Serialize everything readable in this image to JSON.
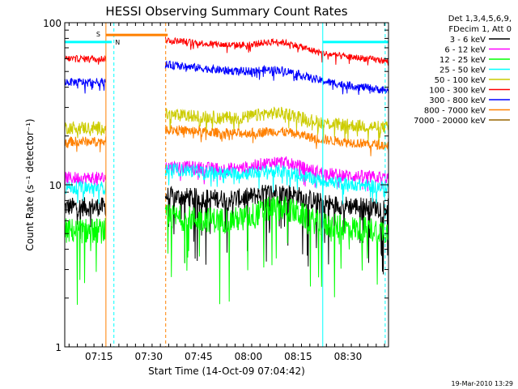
{
  "chart_data": {
    "type": "line",
    "title": "HESSI Observing Summary Count Rates",
    "xlabel": "Start Time (14-Oct-09 07:04:42)",
    "ylabel": "Count Rate (s⁻¹ detector⁻¹)",
    "yscale": "log",
    "ylim": [
      1,
      100
    ],
    "y_ticks": [
      "1",
      "10",
      "100"
    ],
    "x_range_min": [
      0,
      97.5
    ],
    "x_ticks": [
      {
        "m": 10.3,
        "label": "07:15"
      },
      {
        "m": 25.3,
        "label": "07:30"
      },
      {
        "m": 40.3,
        "label": "07:45"
      },
      {
        "m": 55.3,
        "label": "08:00"
      },
      {
        "m": 70.3,
        "label": "08:15"
      },
      {
        "m": 85.3,
        "label": "08:30"
      }
    ],
    "legend_header": [
      "Det 1,3,4,5,6,9,",
      "FDecim 1, Att 0"
    ],
    "series": [
      {
        "name": "3 - 6 keV",
        "color": "#000000",
        "pre": 7.3,
        "post": 8.5,
        "bump": 0.15,
        "end": 7.2,
        "noise": 0.06,
        "spike": 0.4
      },
      {
        "name": "6 - 12 keV",
        "color": "#ff00ff",
        "pre": 11.0,
        "post": 13.0,
        "bump": 0.15,
        "end": 11.0,
        "noise": 0.04,
        "spike": 0.1
      },
      {
        "name": "12 - 25 keV",
        "color": "#00ff00",
        "pre": 5.2,
        "post": 6.3,
        "bump": 0.25,
        "end": 5.2,
        "noise": 0.08,
        "spike": 0.5
      },
      {
        "name": "25 - 50 keV",
        "color": "#00ffff",
        "pre": 9.6,
        "post": 12.5,
        "bump": 0.1,
        "end": 9.6,
        "noise": 0.04,
        "spike": 0.1
      },
      {
        "name": "50 - 100 keV",
        "color": "#cccc00",
        "pre": 22.5,
        "post": 27.0,
        "bump": 0.12,
        "end": 22.5,
        "noise": 0.04,
        "spike": 0.1
      },
      {
        "name": "100 - 300 keV",
        "color": "#ff0000",
        "pre": 60.0,
        "post": 78.0,
        "bump": 0.12,
        "end": 58.0,
        "noise": 0.02,
        "spike": 0.05
      },
      {
        "name": "300 - 800 keV",
        "color": "#0000ff",
        "pre": 43.0,
        "post": 55.0,
        "bump": 0.1,
        "end": 38.0,
        "noise": 0.025,
        "spike": 0.05
      },
      {
        "name": "800 - 7000 keV",
        "color": "#ff8000",
        "pre": 18.5,
        "post": 22.0,
        "bump": 0.08,
        "end": 17.5,
        "noise": 0.03,
        "spike": 0.05
      },
      {
        "name": "7000 - 20000 keV",
        "color": "#996600",
        "pre": null,
        "post": null
      }
    ],
    "markers": [
      {
        "m": 12.4,
        "style": "solid",
        "color": "#ff8000"
      },
      {
        "m": 14.8,
        "style": "dashed",
        "color": "#00ffff"
      },
      {
        "m": 30.4,
        "style": "dashed",
        "color": "#ff8000"
      },
      {
        "m": 77.7,
        "style": "solid",
        "color": "#00ffff"
      },
      {
        "m": 96.5,
        "style": "dashed",
        "color": "#00ffff"
      }
    ],
    "saa_bar": {
      "x0": 12.4,
      "x1": 31.0,
      "y": 84,
      "label": "S",
      "color": "#ff8000"
    },
    "night_bars": [
      {
        "x0": 0,
        "x1": 14.2,
        "y": 76,
        "label": "N",
        "color": "#00ffff"
      },
      {
        "x0": 77.7,
        "x1": 97.5,
        "y": 76,
        "label": "",
        "color": "#00ffff"
      }
    ],
    "gaps": [
      [
        12.4,
        30.2
      ]
    ]
  },
  "footer": {
    "timestamp": "19-Mar-2010 13:29"
  }
}
